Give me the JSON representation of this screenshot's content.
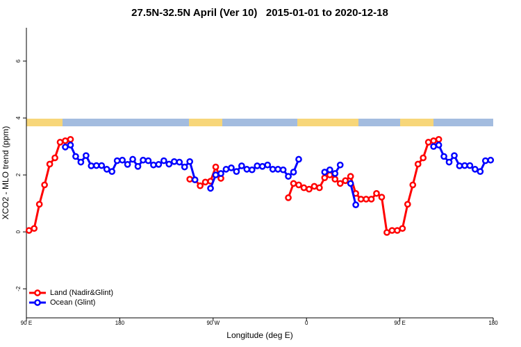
{
  "chart_data": {
    "type": "line",
    "title": "27.5N-32.5N April (Ver 10)   2015-01-01 to 2020-12-18",
    "x_label": "Longitude (deg E)",
    "y_label": "XCO2 - MLO trend (ppm)",
    "xlim": [
      90,
      540
    ],
    "xticks": [
      {
        "value": 90,
        "label": "90 E"
      },
      180,
      {
        "value": 270,
        "label": "90 W"
      },
      {
        "value": 360,
        "label": "0"
      },
      {
        "value": 450,
        "label": "90 E"
      },
      {
        "value": 540,
        "label": "180"
      }
    ],
    "ylim": [
      -3.02,
      7.17
    ],
    "yticks": [
      -2,
      0,
      2,
      4,
      6
    ],
    "legend": "bottomleft",
    "series": [
      {
        "name": "Land (Nadir&Glint)",
        "color": "#ff0000",
        "x": [
          92.5,
          97.5,
          102.5,
          107.5,
          112.5,
          117.5,
          122.5,
          127.5,
          132.5,
          190,
          247.5,
          252.5,
          257.5,
          262.5,
          267.5,
          272.5,
          277.5,
          310,
          342.5,
          347.5,
          352.5,
          357.5,
          362.5,
          367.5,
          372.5,
          377.5,
          382.5,
          387.5,
          392.5,
          397.5,
          402.5,
          407.5,
          412.5,
          417.5,
          422.5,
          427.5,
          432.5,
          437.5,
          442.5,
          447.5,
          452.5,
          457.5,
          462.5,
          467.5,
          472.5,
          477.5,
          482.5,
          487.5
        ],
        "values": [
          0.05,
          0.12,
          0.97,
          1.65,
          2.38,
          2.6,
          3.15,
          3.2,
          3.25,
          null,
          1.85,
          1.83,
          1.62,
          1.75,
          1.78,
          2.28,
          1.88,
          null,
          1.2,
          1.7,
          1.65,
          1.55,
          1.5,
          1.6,
          1.55,
          1.9,
          2.0,
          1.85,
          1.7,
          1.8,
          1.95,
          1.35,
          1.15,
          1.15,
          1.15,
          1.35,
          1.22,
          -0.02,
          0.05,
          0.05,
          0.12,
          0.97,
          1.65,
          2.38,
          2.6,
          3.15,
          3.2,
          3.25
        ]
      },
      {
        "name": "Ocean (Glint)",
        "color": "#0000ff",
        "x": [
          127.5,
          132.5,
          137.5,
          142.5,
          147.5,
          152.5,
          157.5,
          162.5,
          167.5,
          172.5,
          177.5,
          182.5,
          187.5,
          192.5,
          197.5,
          202.5,
          207.5,
          212.5,
          217.5,
          222.5,
          227.5,
          232.5,
          237.5,
          242.5,
          247.5,
          252.5,
          260,
          267.5,
          272.5,
          277.5,
          282.5,
          287.5,
          292.5,
          297.5,
          302.5,
          307.5,
          312.5,
          317.5,
          322.5,
          327.5,
          332.5,
          337.5,
          342.5,
          347.5,
          352.5,
          365,
          377.5,
          382.5,
          387.5,
          392.5,
          397,
          402.5,
          407.5,
          445,
          482.5,
          487.5,
          492.5,
          497.5,
          502.5,
          507.5,
          512.5,
          517.5,
          522.5,
          527.5,
          532.5,
          537.5
        ],
        "values": [
          2.98,
          3.05,
          2.65,
          2.45,
          2.68,
          2.32,
          2.33,
          2.33,
          2.2,
          2.12,
          2.5,
          2.52,
          2.37,
          2.55,
          2.3,
          2.52,
          2.5,
          2.35,
          2.37,
          2.5,
          2.38,
          2.47,
          2.45,
          2.28,
          2.47,
          1.83,
          null,
          1.53,
          2.0,
          2.05,
          2.2,
          2.25,
          2.12,
          2.32,
          2.2,
          2.18,
          2.32,
          2.3,
          2.35,
          2.2,
          2.2,
          2.18,
          1.95,
          2.1,
          2.55,
          null,
          2.1,
          2.18,
          2.05,
          2.35,
          null,
          1.7,
          0.95,
          null,
          3.0,
          3.05,
          2.65,
          2.45,
          2.68,
          2.32,
          2.33,
          2.33,
          2.2,
          2.12,
          2.5,
          2.52
        ]
      }
    ]
  }
}
